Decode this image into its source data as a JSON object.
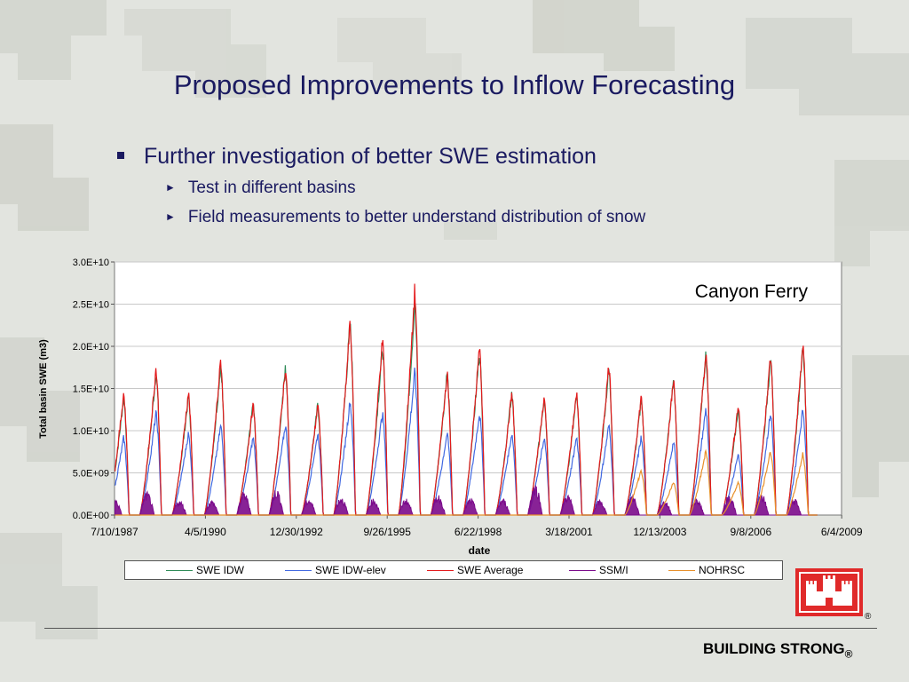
{
  "slide": {
    "title": "Proposed Improvements to Inflow Forecasting",
    "bullets": [
      {
        "text": "Further investigation of better SWE estimation",
        "sub": [
          "Test in different basins",
          "Field measurements to better understand distribution of snow"
        ]
      }
    ],
    "footer": {
      "brand": "BUILDING STRONG",
      "registered": "®"
    },
    "logo_icon": "castle-icon"
  },
  "chart_data": {
    "type": "line",
    "annotation": "Canyon Ferry",
    "xlabel": "date",
    "ylabel": "Total basin SWE (m3)",
    "x_tick_labels": [
      "7/10/1987",
      "4/5/1990",
      "12/30/1992",
      "9/26/1995",
      "6/22/1998",
      "3/18/2001",
      "12/13/2003",
      "9/8/2006",
      "6/4/2009"
    ],
    "y_tick_labels": [
      "0.0E+00",
      "5.0E+09",
      "1.0E+10",
      "1.5E+10",
      "2.0E+10",
      "2.5E+10",
      "3.0E+10"
    ],
    "xlim": [
      1987.52,
      2010.0
    ],
    "ylim": [
      0,
      30000000000.0
    ],
    "grid": "horizontal",
    "legend_position": "bottom",
    "peak_years": [
      1988,
      1989,
      1990,
      1991,
      1992,
      1993,
      1994,
      1995,
      1996,
      1997,
      1998,
      1999,
      2000,
      2001,
      2002,
      2003,
      2004,
      2005,
      2006,
      2007,
      2008,
      2009
    ],
    "series": [
      {
        "name": "SWE IDW",
        "color": "#2e8b57",
        "peaks": [
          14500000000.0,
          17500000000.0,
          14500000000.0,
          18500000000.0,
          13500000000.0,
          18000000000.0,
          13500000000.0,
          23500000000.0,
          20500000000.0,
          26000000000.0,
          17500000000.0,
          20000000000.0,
          15000000000.0,
          14500000000.0,
          14500000000.0,
          18000000000.0,
          14000000000.0,
          16500000000.0,
          20000000000.0,
          13000000000.0,
          19000000000.0,
          20500000000.0
        ]
      },
      {
        "name": "SWE IDW-elev",
        "color": "#4169e1",
        "peaks": [
          9500000000.0,
          12500000000.0,
          10000000000.0,
          11000000000.0,
          9500000000.0,
          11000000000.0,
          10000000000.0,
          14000000000.0,
          12500000000.0,
          17500000000.0,
          10000000000.0,
          12500000000.0,
          10000000000.0,
          9500000000.0,
          9500000000.0,
          11000000000.0,
          9500000000.0,
          9000000000.0,
          13000000000.0,
          7500000000.0,
          12500000000.0,
          13000000000.0
        ]
      },
      {
        "name": "SWE Average",
        "color": "#e41a1c",
        "peaks": [
          15000000000.0,
          18000000000.0,
          15000000000.0,
          19000000000.0,
          13500000000.0,
          18000000000.0,
          13500000000.0,
          23500000000.0,
          21500000000.0,
          27500000000.0,
          17500000000.0,
          20500000000.0,
          15000000000.0,
          14500000000.0,
          15000000000.0,
          18500000000.0,
          14500000000.0,
          16500000000.0,
          20000000000.0,
          13500000000.0,
          19500000000.0,
          21000000000.0
        ]
      },
      {
        "name": "SSM/I",
        "color": "#7b0a8b",
        "peaks": [
          2000000000.0,
          2800000000.0,
          1800000000.0,
          1800000000.0,
          2800000000.0,
          3200000000.0,
          2000000000.0,
          2200000000.0,
          2000000000.0,
          2000000000.0,
          2500000000.0,
          2000000000.0,
          2000000000.0,
          3800000000.0,
          2500000000.0,
          1800000000.0,
          2500000000.0,
          1800000000.0,
          2000000000.0,
          2500000000.0,
          2500000000.0,
          2000000000.0
        ]
      },
      {
        "name": "NOHRSC",
        "color": "#e8902a",
        "start_year": 2004,
        "peaks": [
          0,
          0,
          0,
          0,
          0,
          0,
          0,
          0,
          0,
          0,
          0,
          0,
          0,
          0,
          0,
          0,
          5500000000.0,
          4000000000.0,
          7800000000.0,
          4000000000.0,
          7800000000.0,
          7500000000.0
        ]
      }
    ]
  }
}
